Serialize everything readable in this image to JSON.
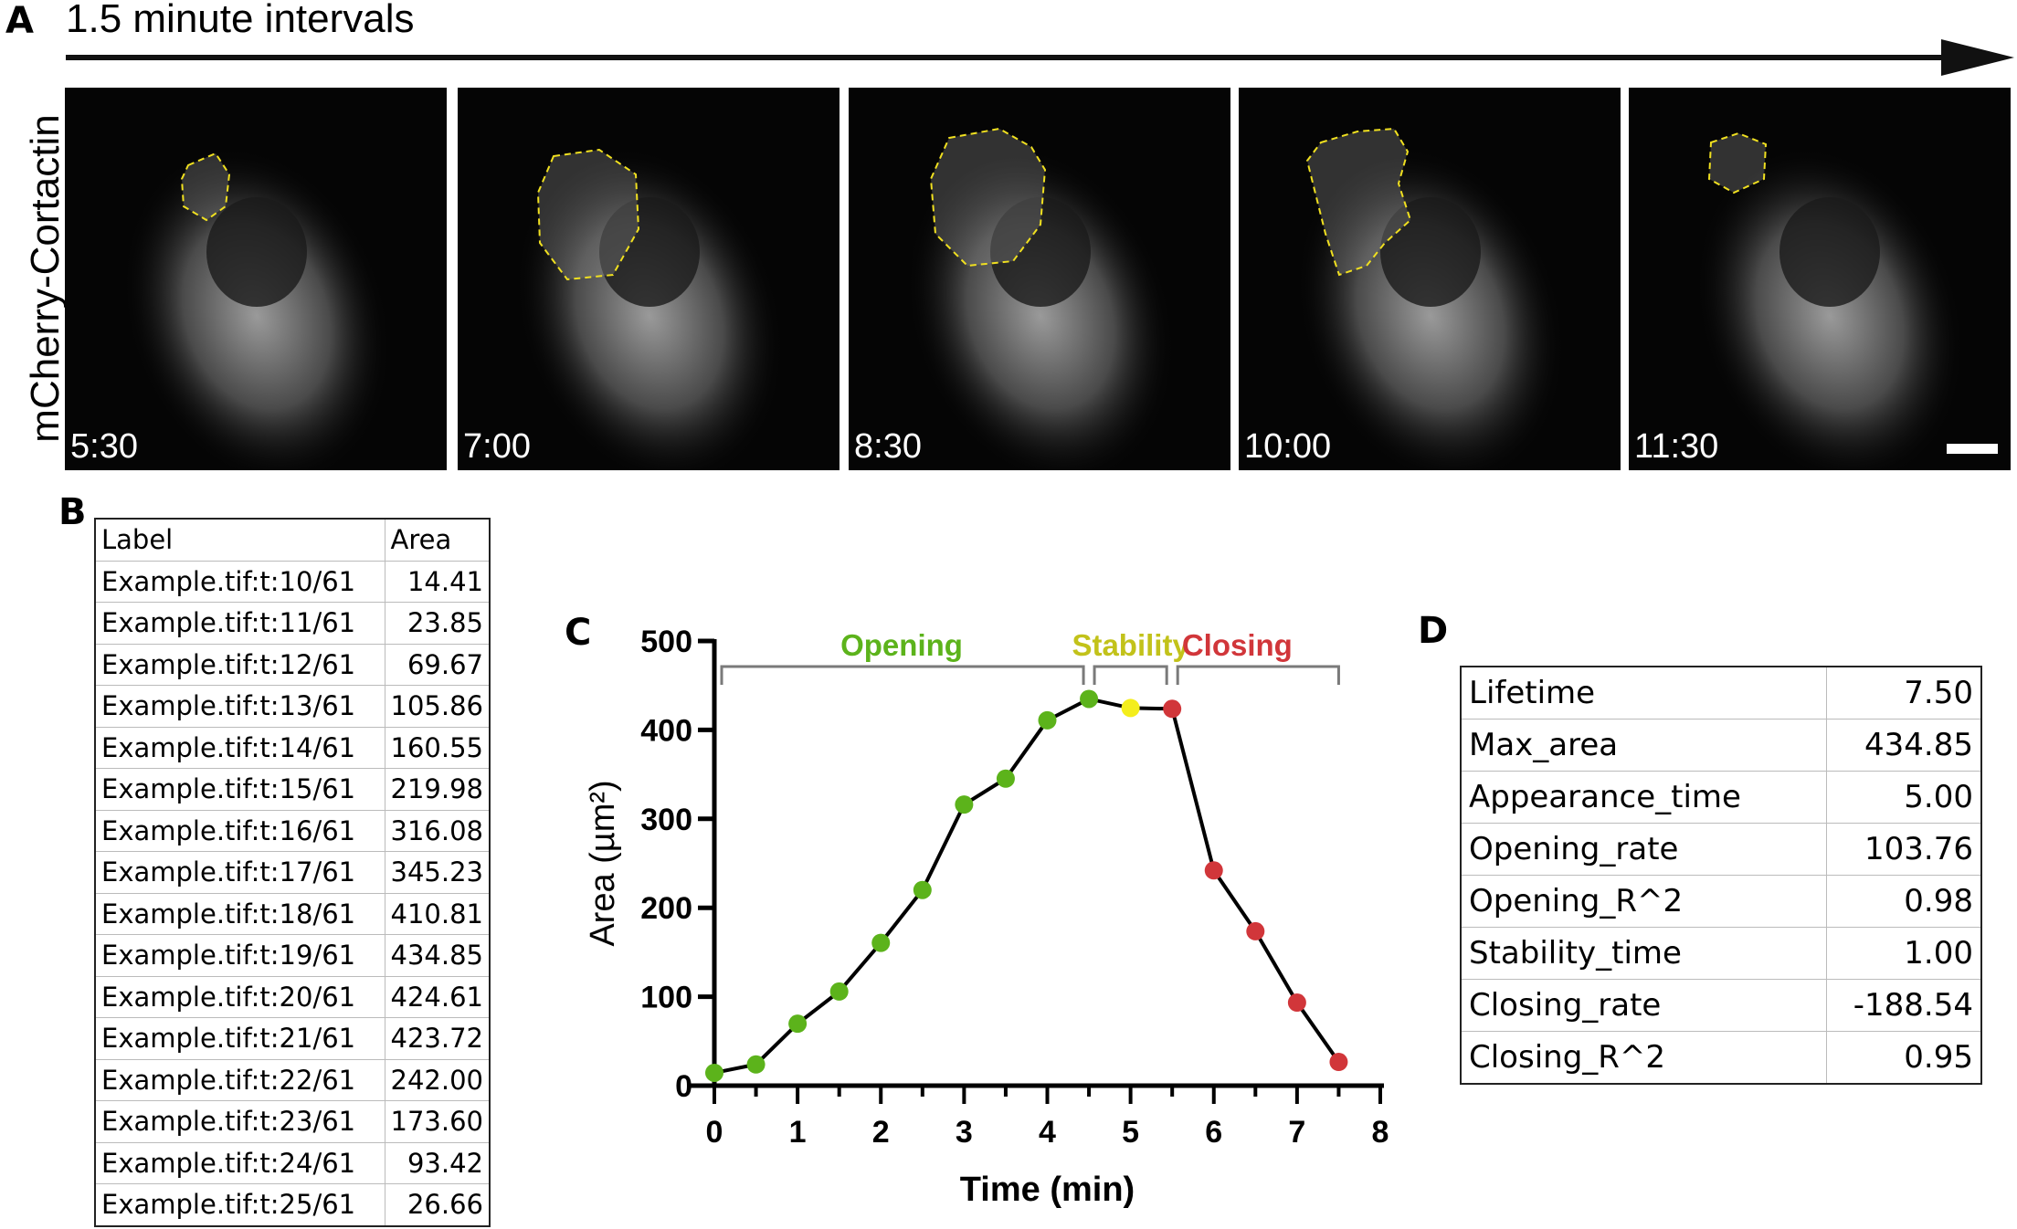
{
  "panel_labels": {
    "a": "A",
    "b": "B",
    "c": "C",
    "d": "D"
  },
  "panel_a": {
    "title": "1.5 minute intervals",
    "ylabel": "mCherry-Cortactin",
    "frames": [
      {
        "time": "5:30"
      },
      {
        "time": "7:00"
      },
      {
        "time": "8:30"
      },
      {
        "time": "10:00"
      },
      {
        "time": "11:30"
      }
    ],
    "outline_color": "#f0e020"
  },
  "panel_b": {
    "headers": [
      "Label",
      "Area"
    ],
    "rows": [
      [
        "Example.tif:t:10/61",
        "14.41"
      ],
      [
        "Example.tif:t:11/61",
        "23.85"
      ],
      [
        "Example.tif:t:12/61",
        "69.67"
      ],
      [
        "Example.tif:t:13/61",
        "105.86"
      ],
      [
        "Example.tif:t:14/61",
        "160.55"
      ],
      [
        "Example.tif:t:15/61",
        "219.98"
      ],
      [
        "Example.tif:t:16/61",
        "316.08"
      ],
      [
        "Example.tif:t:17/61",
        "345.23"
      ],
      [
        "Example.tif:t:18/61",
        "410.81"
      ],
      [
        "Example.tif:t:19/61",
        "434.85"
      ],
      [
        "Example.tif:t:20/61",
        "424.61"
      ],
      [
        "Example.tif:t:21/61",
        "423.72"
      ],
      [
        "Example.tif:t:22/61",
        "242.00"
      ],
      [
        "Example.tif:t:23/61",
        "173.60"
      ],
      [
        "Example.tif:t:24/61",
        "93.42"
      ],
      [
        "Example.tif:t:25/61",
        "26.66"
      ]
    ]
  },
  "chart_data": {
    "type": "line",
    "xlabel": "Time (min)",
    "ylabel": "Area (µm²)",
    "xlim": [
      0,
      8
    ],
    "ylim": [
      0,
      500
    ],
    "xticks": [
      "0",
      "1",
      "2",
      "3",
      "4",
      "5",
      "6",
      "7",
      "8"
    ],
    "yticks": [
      "0",
      "100",
      "200",
      "300",
      "400",
      "500"
    ],
    "x": [
      0,
      0.5,
      1,
      1.5,
      2,
      2.5,
      3,
      3.5,
      4,
      4.5,
      5,
      5.5,
      6,
      6.5,
      7,
      7.5
    ],
    "y": [
      14.41,
      23.85,
      69.67,
      105.86,
      160.55,
      219.98,
      316.08,
      345.23,
      410.81,
      434.85,
      424.61,
      423.72,
      242.0,
      173.6,
      93.42,
      26.66
    ],
    "point_phase": [
      "opening",
      "opening",
      "opening",
      "opening",
      "opening",
      "opening",
      "opening",
      "opening",
      "opening",
      "opening",
      "stability",
      "closing",
      "closing",
      "closing",
      "closing",
      "closing"
    ],
    "phases": [
      {
        "key": "opening",
        "label": "Opening",
        "start": 0,
        "end": 4.5,
        "color": "#5cb31b",
        "text_color": "#5cb31b"
      },
      {
        "key": "stability",
        "label": "Stability",
        "start": 4.5,
        "end": 5.5,
        "color": "#f4ee1c",
        "text_color": "#c2c21a"
      },
      {
        "key": "closing",
        "label": "Closing",
        "start": 5.5,
        "end": 7.5,
        "color": "#d1363a",
        "text_color": "#d1363a"
      }
    ],
    "grid": false,
    "line_color": "#000000",
    "bracket_color": "#7a7a7a"
  },
  "panel_d": {
    "rows": [
      [
        "Lifetime",
        "7.50"
      ],
      [
        "Max_area",
        "434.85"
      ],
      [
        "Appearance_time",
        "5.00"
      ],
      [
        "Opening_rate",
        "103.76"
      ],
      [
        "Opening_R^2",
        "0.98"
      ],
      [
        "Stability_time",
        "1.00"
      ],
      [
        "Closing_rate",
        "-188.54"
      ],
      [
        "Closing_R^2",
        "0.95"
      ]
    ]
  }
}
